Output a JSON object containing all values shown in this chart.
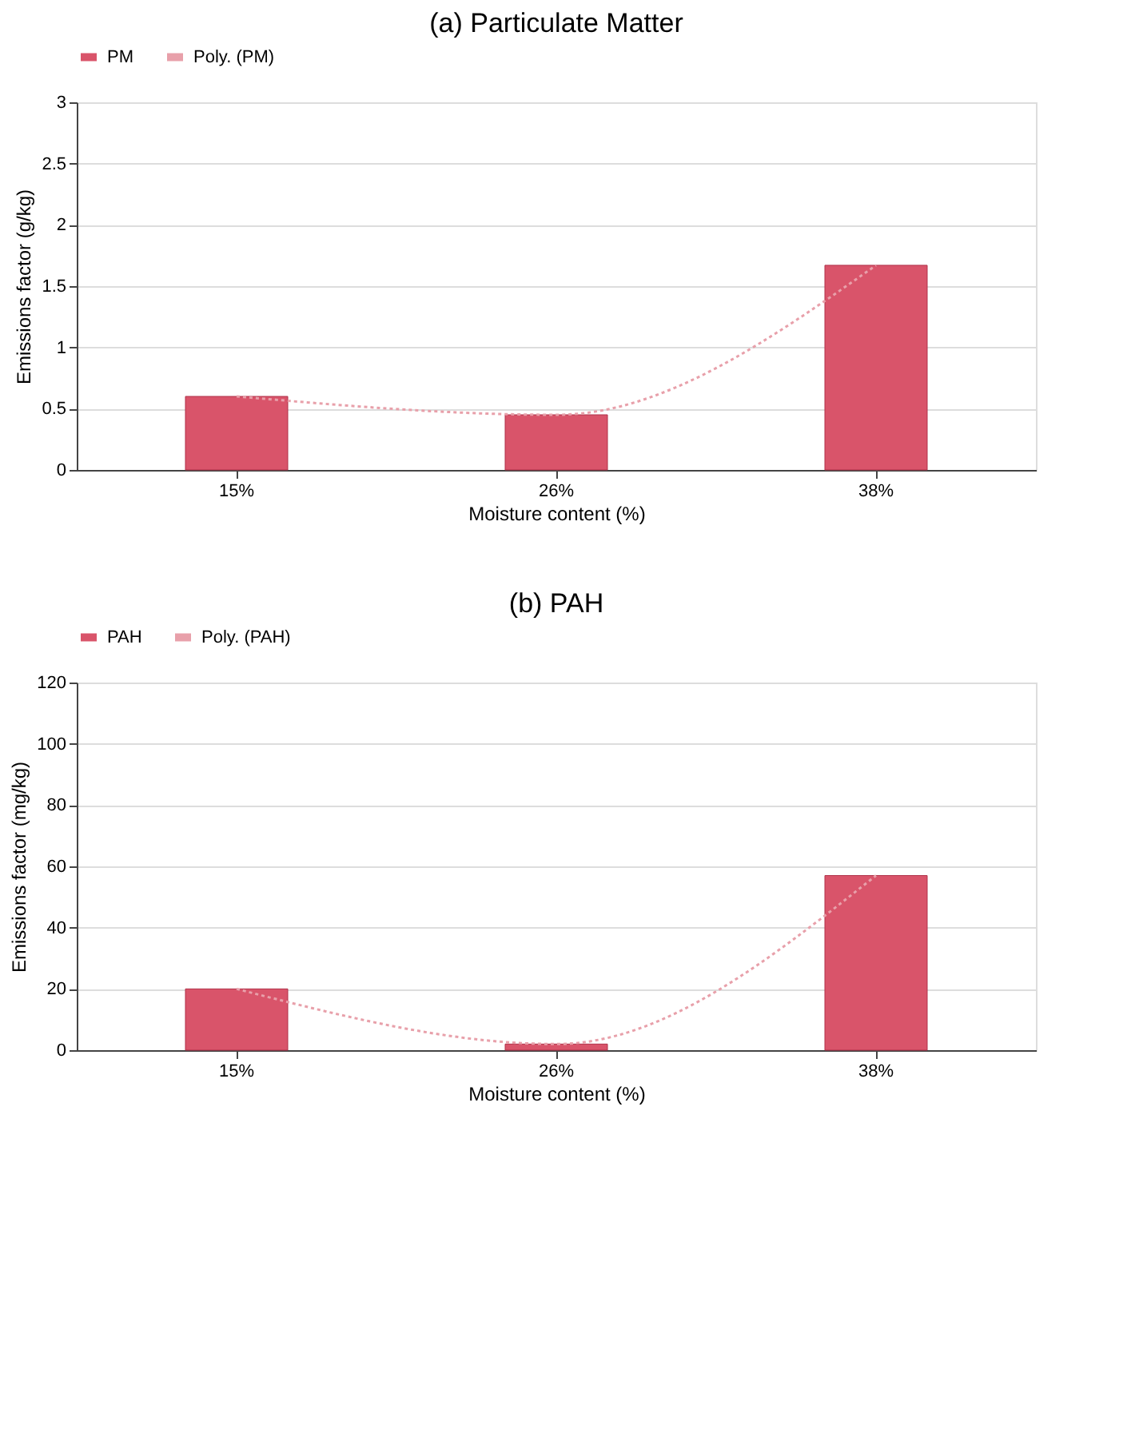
{
  "chart_data": [
    {
      "type": "bar",
      "title": "(a) Particulate Matter",
      "xlabel": "Moisture content (%)",
      "ylabel": "Emissions factor (g/kg)",
      "categories": [
        "15%",
        "26%",
        "38%"
      ],
      "ylim": [
        0,
        3
      ],
      "yticks": [
        0,
        0.5,
        1,
        1.5,
        2,
        2.5,
        3
      ],
      "grid": "y",
      "legend": "top",
      "series": [
        {
          "name": "PM",
          "color": "#d9546a",
          "values": [
            0.6,
            0.45,
            1.67
          ]
        },
        {
          "name": "Poly. (PM)",
          "type": "line",
          "color": "#e8a0aa",
          "line_style": "dotted",
          "values": [
            0.6,
            0.45,
            1.67
          ]
        }
      ]
    },
    {
      "type": "bar",
      "title": "(b) PAH",
      "xlabel": "Moisture content (%)",
      "ylabel": "Emissions factor (mg/kg)",
      "categories": [
        "15%",
        "26%",
        "38%"
      ],
      "ylim": [
        0,
        120
      ],
      "yticks": [
        0,
        20,
        40,
        60,
        80,
        100,
        120
      ],
      "grid": "y",
      "legend": "top",
      "series": [
        {
          "name": "PAH",
          "color": "#d9546a",
          "values": [
            20,
            2,
            57
          ]
        },
        {
          "name": "Poly. (PAH)",
          "type": "line",
          "color": "#e8a0aa",
          "line_style": "dotted",
          "values": [
            20,
            2,
            57
          ]
        }
      ]
    }
  ]
}
